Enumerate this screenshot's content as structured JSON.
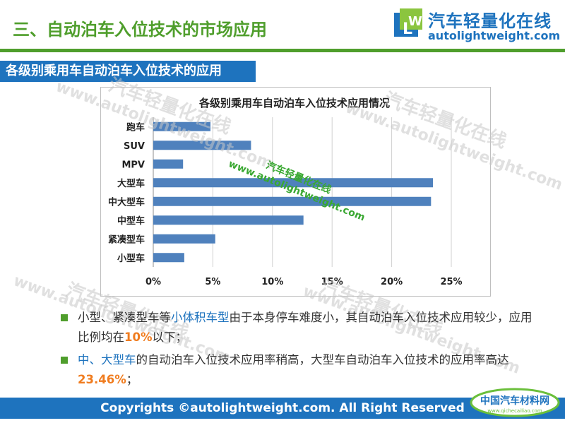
{
  "header": {
    "title": "三、自动泊车入位技术的市场应用",
    "logo_cn": "汽车轻量化在线",
    "logo_en": "autolightweight.com"
  },
  "section_title": "各级别乘用车自动泊车入位技术的应用",
  "chart_data": {
    "type": "bar",
    "orientation": "horizontal",
    "title": "各级别乘用车自动泊车入位技术应用情况",
    "categories": [
      "跑车",
      "SUV",
      "MPV",
      "大型车",
      "中大型车",
      "中型车",
      "紧凑型车",
      "小型车"
    ],
    "values": [
      4.8,
      8.2,
      2.5,
      23.46,
      23.3,
      12.6,
      5.2,
      2.6
    ],
    "xticks": [
      "0%",
      "5%",
      "10%",
      "15%",
      "20%",
      "25%"
    ],
    "xlim": [
      0,
      25
    ],
    "bar_color": "#4f81bd",
    "grid": true,
    "legend": "none"
  },
  "bullets": {
    "b1": {
      "part1": "小型、紧凑型车等",
      "highlight": "小体积车型",
      "part2": "由于本身停车难度小，其自动泊车入位技术应用较少，应用比例均在",
      "pct": "10%",
      "part3": "以下；"
    },
    "b2": {
      "highlight": "中、大型车",
      "part1": "的自动泊车入位技术应用率稍高，大型车自动泊车入位技术的应用率高达",
      "pct": "23.46%",
      "part2": "；"
    }
  },
  "watermarks": {
    "cn": "汽车轻量化在线",
    "en": "www.autolightweight.com"
  },
  "footer": "Copyrights ©autolightweight.com. All Right Reserved",
  "corner_logo": {
    "cn": "中国汽车材料网",
    "en": "www.qichecailiao.com"
  },
  "colors": {
    "green": "#4f9e2c",
    "blue": "#1e73be",
    "orange": "#f07c1f"
  }
}
